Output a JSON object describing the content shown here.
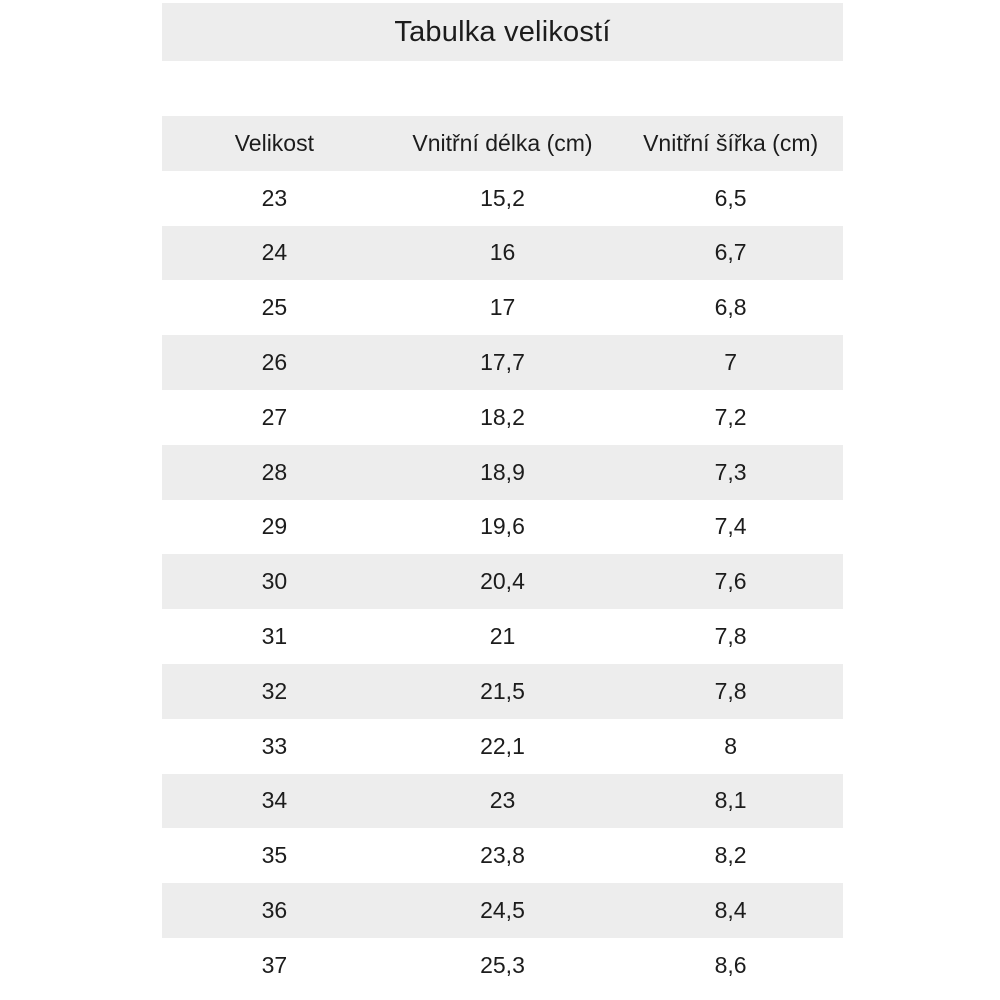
{
  "title": "Tabulka velikostí",
  "colors": {
    "band_bg": "#ededed",
    "text": "#1c1c1c",
    "page_bg": "#ffffff"
  },
  "chart_data": {
    "type": "table",
    "title": "Tabulka velikostí",
    "columns": [
      "Velikost",
      "Vnitřní délka (cm)",
      "Vnitřní šířka (cm)"
    ],
    "rows": [
      [
        "23",
        "15,2",
        "6,5"
      ],
      [
        "24",
        "16",
        "6,7"
      ],
      [
        "25",
        "17",
        "6,8"
      ],
      [
        "26",
        "17,7",
        "7"
      ],
      [
        "27",
        "18,2",
        "7,2"
      ],
      [
        "28",
        "18,9",
        "7,3"
      ],
      [
        "29",
        "19,6",
        "7,4"
      ],
      [
        "30",
        "20,4",
        "7,6"
      ],
      [
        "31",
        "21",
        "7,8"
      ],
      [
        "32",
        "21,5",
        "7,8"
      ],
      [
        "33",
        "22,1",
        "8"
      ],
      [
        "34",
        "23",
        "8,1"
      ],
      [
        "35",
        "23,8",
        "8,2"
      ],
      [
        "36",
        "24,5",
        "8,4"
      ],
      [
        "37",
        "25,3",
        "8,6"
      ]
    ],
    "layout": {
      "striped": true,
      "stripe_color": "#ededed",
      "header_background": "#ededed",
      "text_align": "center"
    }
  }
}
